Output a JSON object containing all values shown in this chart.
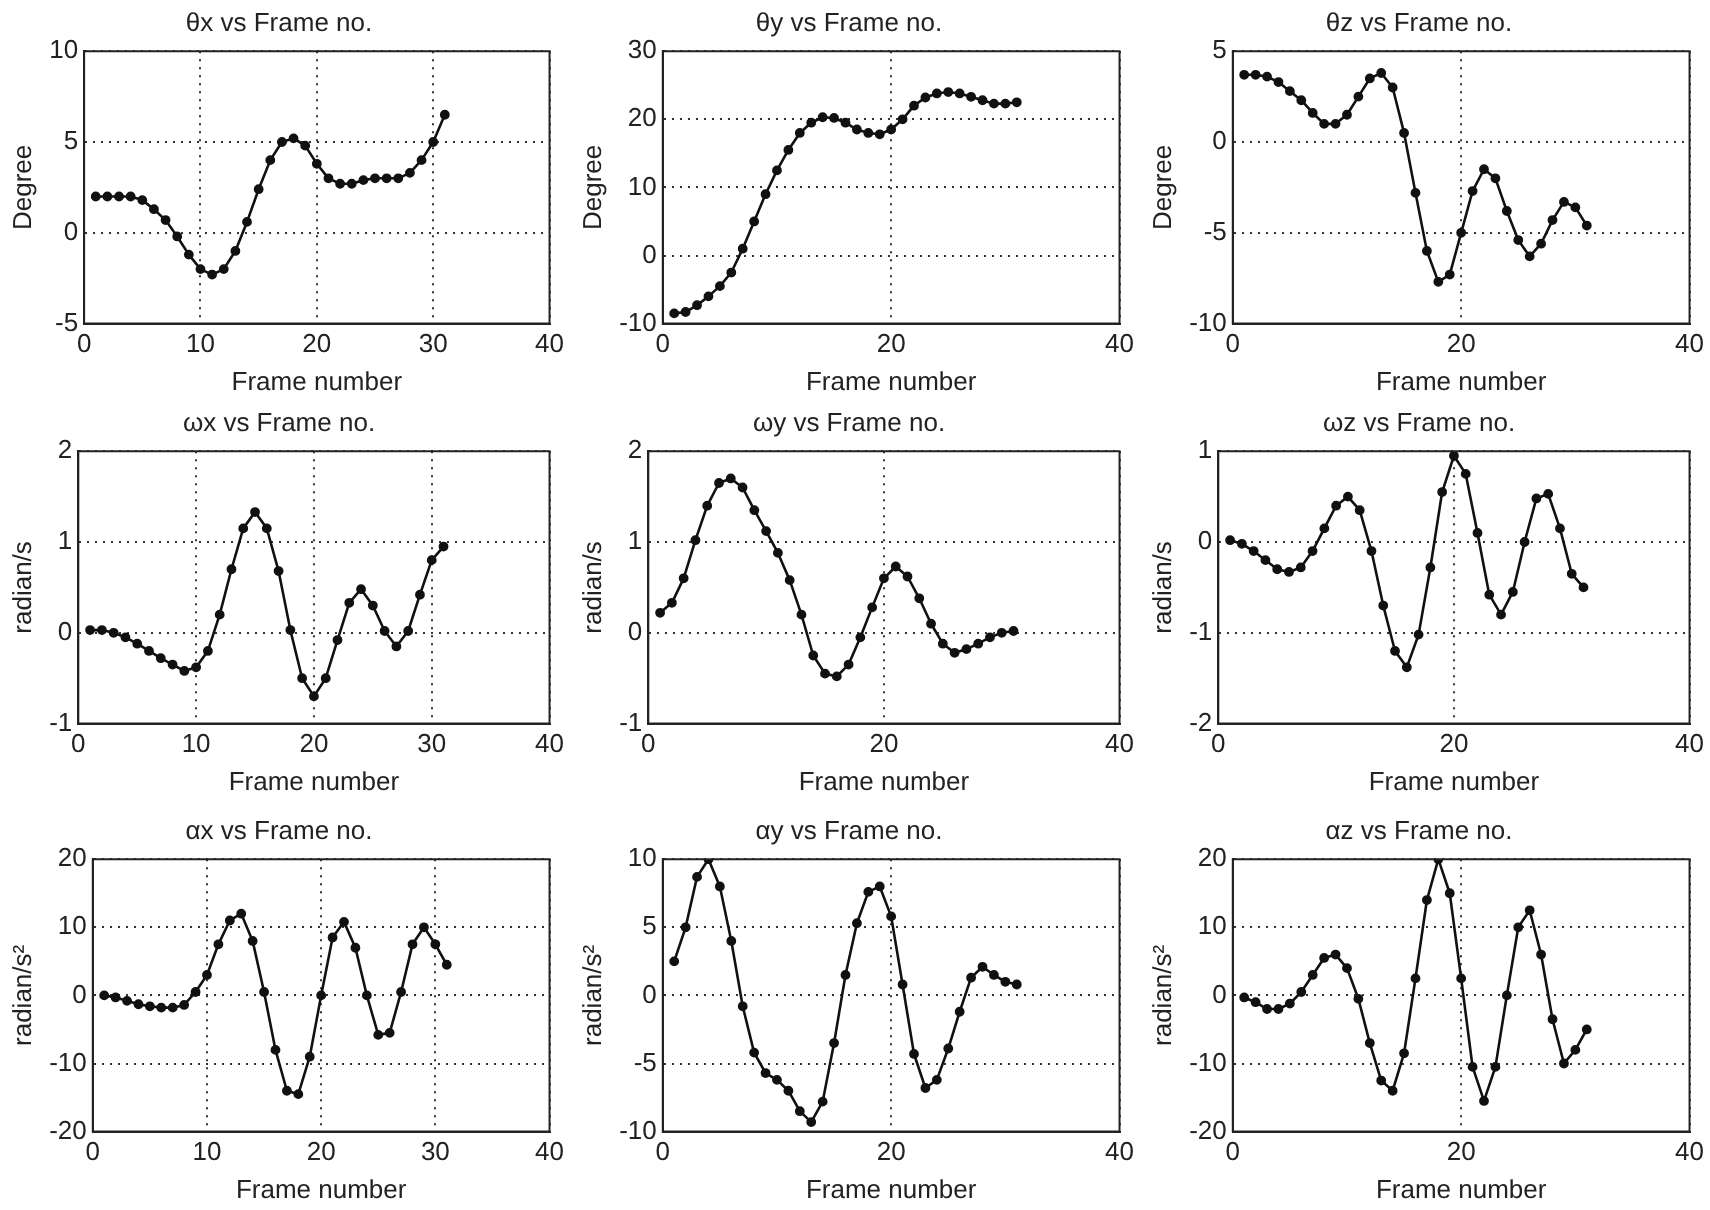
{
  "chart_data": [
    {
      "type": "line",
      "title": "θx vs Frame no.",
      "xlabel": "Frame number",
      "ylabel": "Degree",
      "color": "#111111",
      "marker": "circle",
      "line_style": "solid",
      "grid": true,
      "xlim": [
        0,
        40
      ],
      "xticks": [
        0,
        10,
        20,
        30,
        40
      ],
      "ylim": [
        -5,
        10
      ],
      "yticks": [
        -5,
        0,
        5,
        10
      ],
      "x": [
        1,
        2,
        3,
        4,
        5,
        6,
        7,
        8,
        9,
        10,
        11,
        12,
        13,
        14,
        15,
        16,
        17,
        18,
        19,
        20,
        21,
        22,
        23,
        24,
        25,
        26,
        27,
        28,
        29,
        30,
        31
      ],
      "values": [
        2,
        2,
        2,
        2,
        1.8,
        1.3,
        0.7,
        -0.2,
        -1.2,
        -2,
        -2.3,
        -2,
        -1,
        0.6,
        2.4,
        4,
        5,
        5.2,
        4.8,
        3.8,
        3,
        2.7,
        2.7,
        2.9,
        3,
        3,
        3,
        3.3,
        4,
        5,
        6.5
      ]
    },
    {
      "type": "line",
      "title": "θy vs Frame no.",
      "xlabel": "Frame number",
      "ylabel": "Degree",
      "color": "#111111",
      "marker": "circle",
      "line_style": "solid",
      "grid": true,
      "xlim": [
        0,
        40
      ],
      "xticks": [
        0,
        20,
        40
      ],
      "ylim": [
        -10,
        30
      ],
      "yticks": [
        -10,
        0,
        10,
        20,
        30
      ],
      "x": [
        1,
        2,
        3,
        4,
        5,
        6,
        7,
        8,
        9,
        10,
        11,
        12,
        13,
        14,
        15,
        16,
        17,
        18,
        19,
        20,
        21,
        22,
        23,
        24,
        25,
        26,
        27,
        28,
        29,
        30,
        31
      ],
      "values": [
        -8.5,
        -8.3,
        -7.3,
        -6,
        -4.5,
        -2.5,
        1,
        5,
        9,
        12.5,
        15.5,
        18,
        19.5,
        20.3,
        20.2,
        19.5,
        18.5,
        18,
        17.8,
        18.5,
        20,
        22,
        23.2,
        23.8,
        24,
        23.8,
        23.3,
        22.8,
        22.3,
        22.3,
        22.5
      ]
    },
    {
      "type": "line",
      "title": "θz vs Frame no.",
      "xlabel": "Frame number",
      "ylabel": "Degree",
      "color": "#111111",
      "marker": "circle",
      "line_style": "solid",
      "grid": true,
      "xlim": [
        0,
        40
      ],
      "xticks": [
        0,
        20,
        40
      ],
      "ylim": [
        -10,
        5
      ],
      "yticks": [
        -10,
        -5,
        0,
        5
      ],
      "x": [
        1,
        2,
        3,
        4,
        5,
        6,
        7,
        8,
        9,
        10,
        11,
        12,
        13,
        14,
        15,
        16,
        17,
        18,
        19,
        20,
        21,
        22,
        23,
        24,
        25,
        26,
        27,
        28,
        29,
        30,
        31
      ],
      "values": [
        3.7,
        3.7,
        3.6,
        3.3,
        2.8,
        2.3,
        1.6,
        1,
        1,
        1.5,
        2.5,
        3.5,
        3.8,
        3,
        0.5,
        -2.8,
        -6,
        -7.7,
        -7.3,
        -5,
        -2.7,
        -1.5,
        -2,
        -3.8,
        -5.4,
        -6.3,
        -5.6,
        -4.3,
        -3.3,
        -3.6,
        -4.6
      ]
    },
    {
      "type": "line",
      "title": "ωx vs Frame no.",
      "xlabel": "Frame number",
      "ylabel": "radian/s",
      "color": "#111111",
      "marker": "circle",
      "line_style": "solid",
      "grid": true,
      "xlim": [
        0,
        40
      ],
      "xticks": [
        0,
        10,
        20,
        30,
        40
      ],
      "ylim": [
        -1,
        2
      ],
      "yticks": [
        -1,
        0,
        1,
        2
      ],
      "x": [
        1,
        2,
        3,
        4,
        5,
        6,
        7,
        8,
        9,
        10,
        11,
        12,
        13,
        14,
        15,
        16,
        17,
        18,
        19,
        20,
        21,
        22,
        23,
        24,
        25,
        26,
        27,
        28,
        29,
        30,
        31
      ],
      "values": [
        0.03,
        0.03,
        0,
        -0.05,
        -0.12,
        -0.2,
        -0.28,
        -0.35,
        -0.42,
        -0.38,
        -0.2,
        0.2,
        0.7,
        1.15,
        1.33,
        1.15,
        0.68,
        0.03,
        -0.5,
        -0.7,
        -0.5,
        -0.08,
        0.33,
        0.48,
        0.3,
        0.02,
        -0.15,
        0.02,
        0.42,
        0.8,
        0.95
      ]
    },
    {
      "type": "line",
      "title": "ωy vs Frame no.",
      "xlabel": "Frame number",
      "ylabel": "radian/s",
      "color": "#111111",
      "marker": "circle",
      "line_style": "solid",
      "grid": true,
      "xlim": [
        0,
        40
      ],
      "xticks": [
        0,
        20,
        40
      ],
      "ylim": [
        -1,
        2
      ],
      "yticks": [
        -1,
        0,
        1,
        2
      ],
      "x": [
        1,
        2,
        3,
        4,
        5,
        6,
        7,
        8,
        9,
        10,
        11,
        12,
        13,
        14,
        15,
        16,
        17,
        18,
        19,
        20,
        21,
        22,
        23,
        24,
        25,
        26,
        27,
        28,
        29,
        30,
        31
      ],
      "values": [
        0.22,
        0.33,
        0.6,
        1.02,
        1.4,
        1.65,
        1.7,
        1.6,
        1.35,
        1.12,
        0.88,
        0.58,
        0.2,
        -0.25,
        -0.45,
        -0.48,
        -0.35,
        -0.05,
        0.28,
        0.6,
        0.73,
        0.62,
        0.38,
        0.1,
        -0.12,
        -0.22,
        -0.18,
        -0.12,
        -0.05,
        0,
        0.02
      ]
    },
    {
      "type": "line",
      "title": "ωz vs Frame no.",
      "xlabel": "Frame number",
      "ylabel": "radian/s",
      "color": "#111111",
      "marker": "circle",
      "line_style": "solid",
      "grid": true,
      "xlim": [
        0,
        40
      ],
      "xticks": [
        0,
        20,
        40
      ],
      "ylim": [
        -2,
        1
      ],
      "yticks": [
        -2,
        -1,
        0,
        1
      ],
      "x": [
        1,
        2,
        3,
        4,
        5,
        6,
        7,
        8,
        9,
        10,
        11,
        12,
        13,
        14,
        15,
        16,
        17,
        18,
        19,
        20,
        21,
        22,
        23,
        24,
        25,
        26,
        27,
        28,
        29,
        30,
        31
      ],
      "values": [
        0.02,
        -0.02,
        -0.1,
        -0.2,
        -0.3,
        -0.33,
        -0.28,
        -0.1,
        0.15,
        0.4,
        0.5,
        0.35,
        -0.1,
        -0.7,
        -1.2,
        -1.38,
        -1.02,
        -0.28,
        0.55,
        0.95,
        0.75,
        0.1,
        -0.58,
        -0.8,
        -0.55,
        0,
        0.48,
        0.53,
        0.15,
        -0.35,
        -0.5
      ]
    },
    {
      "type": "line",
      "title": "αx vs Frame no.",
      "xlabel": "Frame number",
      "ylabel": "radian/s²",
      "color": "#111111",
      "marker": "circle",
      "line_style": "solid",
      "grid": true,
      "xlim": [
        0,
        40
      ],
      "xticks": [
        0,
        10,
        20,
        30,
        40
      ],
      "ylim": [
        -20,
        20
      ],
      "yticks": [
        -20,
        -10,
        0,
        10,
        20
      ],
      "x": [
        1,
        2,
        3,
        4,
        5,
        6,
        7,
        8,
        9,
        10,
        11,
        12,
        13,
        14,
        15,
        16,
        17,
        18,
        19,
        20,
        21,
        22,
        23,
        24,
        25,
        26,
        27,
        28,
        29,
        30,
        31
      ],
      "values": [
        0,
        -0.3,
        -0.8,
        -1.3,
        -1.6,
        -1.8,
        -1.8,
        -1.4,
        0.5,
        3,
        7.5,
        11,
        12,
        8,
        0.5,
        -8,
        -14,
        -14.5,
        -9,
        0,
        8.5,
        10.8,
        7,
        0,
        -5.8,
        -5.5,
        0.5,
        7.5,
        10,
        7.5,
        4.5
      ]
    },
    {
      "type": "line",
      "title": "αy vs Frame no.",
      "xlabel": "Frame number",
      "ylabel": "radian/s²",
      "color": "#111111",
      "marker": "circle",
      "line_style": "solid",
      "grid": true,
      "xlim": [
        0,
        40
      ],
      "xticks": [
        0,
        20,
        40
      ],
      "ylim": [
        -10,
        10
      ],
      "yticks": [
        -10,
        -5,
        0,
        5,
        10
      ],
      "x": [
        1,
        2,
        3,
        4,
        5,
        6,
        7,
        8,
        9,
        10,
        11,
        12,
        13,
        14,
        15,
        16,
        17,
        18,
        19,
        20,
        21,
        22,
        23,
        24,
        25,
        26,
        27,
        28,
        29,
        30,
        31
      ],
      "values": [
        2.5,
        5,
        8.7,
        10,
        8,
        4,
        -0.8,
        -4.2,
        -5.7,
        -6.2,
        -7,
        -8.5,
        -9.3,
        -7.8,
        -3.5,
        1.5,
        5.3,
        7.6,
        8,
        5.8,
        0.8,
        -4.3,
        -6.8,
        -6.2,
        -3.9,
        -1.2,
        1.3,
        2.1,
        1.5,
        1,
        0.8
      ]
    },
    {
      "type": "line",
      "title": "αz vs Frame no.",
      "xlabel": "Frame number",
      "ylabel": "radian/s²",
      "color": "#111111",
      "marker": "circle",
      "line_style": "solid",
      "grid": true,
      "xlim": [
        0,
        40
      ],
      "xticks": [
        0,
        20,
        40
      ],
      "ylim": [
        -20,
        20
      ],
      "yticks": [
        -20,
        -10,
        0,
        10,
        20
      ],
      "x": [
        1,
        2,
        3,
        4,
        5,
        6,
        7,
        8,
        9,
        10,
        11,
        12,
        13,
        14,
        15,
        16,
        17,
        18,
        19,
        20,
        21,
        22,
        23,
        24,
        25,
        26,
        27,
        28,
        29,
        30,
        31
      ],
      "values": [
        -0.3,
        -1,
        -2,
        -2,
        -1.2,
        0.5,
        3,
        5.5,
        6,
        4,
        -0.5,
        -7,
        -12.5,
        -14,
        -8.5,
        2.5,
        14,
        20,
        15,
        2.5,
        -10.5,
        -15.5,
        -10.5,
        0,
        10,
        12.5,
        6,
        -3.5,
        -10,
        -8,
        -5
      ]
    }
  ]
}
